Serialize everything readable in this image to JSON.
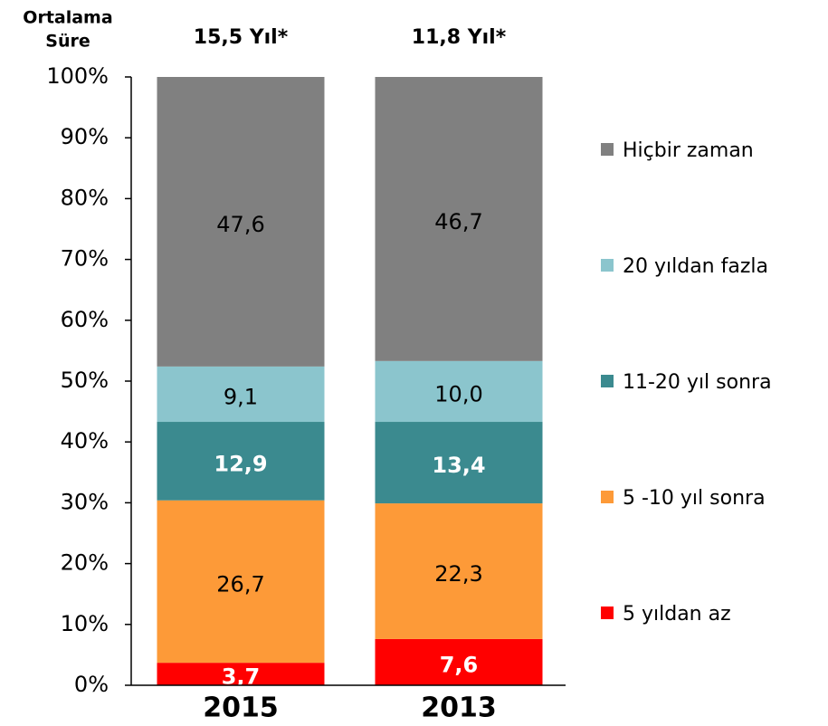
{
  "chart_data": {
    "type": "stacked_bar",
    "header_lines": [
      "Ortalama",
      "Süre"
    ],
    "bar_annotations": [
      "15,5 Yıl*",
      "11,8 Yıl*"
    ],
    "categories": [
      "2015",
      "2013"
    ],
    "series": [
      {
        "name": "5 yıldan az",
        "color": "#ff0000",
        "label_color": "#ffffff",
        "label_bold": true,
        "values": [
          3.7,
          7.6
        ],
        "value_labels": [
          "3,7",
          "7,6"
        ]
      },
      {
        "name": "5 -10 yıl sonra",
        "color": "#fd9a38",
        "label_color": "#000000",
        "label_bold": false,
        "values": [
          26.7,
          22.3
        ],
        "value_labels": [
          "26,7",
          "22,3"
        ]
      },
      {
        "name": "11-20 yıl sonra",
        "color": "#3b8a8f",
        "label_color": "#ffffff",
        "label_bold": true,
        "values": [
          12.9,
          13.4
        ],
        "value_labels": [
          "12,9",
          "13,4"
        ]
      },
      {
        "name": "20 yıldan fazla",
        "color": "#8bc5cd",
        "label_color": "#000000",
        "label_bold": false,
        "values": [
          9.1,
          10.0
        ],
        "value_labels": [
          "9,1",
          "10,0"
        ]
      },
      {
        "name": "Hiçbir zaman",
        "color": "#808080",
        "label_color": "#000000",
        "label_bold": false,
        "values": [
          47.6,
          46.7
        ],
        "value_labels": [
          "47,6",
          "46,7"
        ]
      }
    ],
    "ylim": [
      0,
      100
    ],
    "yticks": [
      {
        "value": 0,
        "label": "0%"
      },
      {
        "value": 10,
        "label": "10%"
      },
      {
        "value": 20,
        "label": "20%"
      },
      {
        "value": 30,
        "label": "30%"
      },
      {
        "value": 40,
        "label": "40%"
      },
      {
        "value": 50,
        "label": "50%"
      },
      {
        "value": 60,
        "label": "60%"
      },
      {
        "value": 70,
        "label": "70%"
      },
      {
        "value": 80,
        "label": "80%"
      },
      {
        "value": 90,
        "label": "90%"
      },
      {
        "value": 100,
        "label": "100%"
      }
    ],
    "legend": "right"
  }
}
